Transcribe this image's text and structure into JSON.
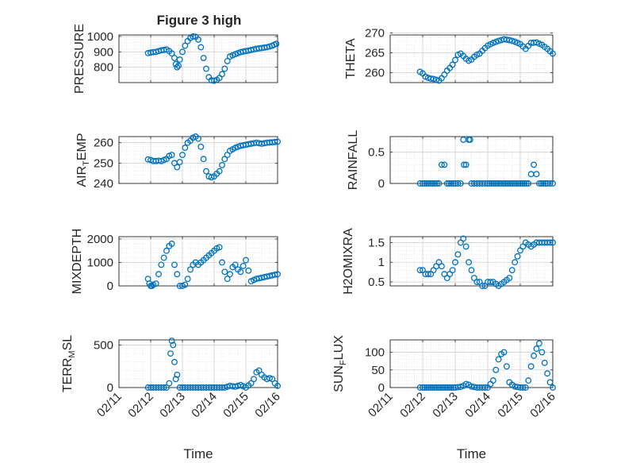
{
  "figure": {
    "title": "Figure 3 high",
    "marker_color": "#0072BD",
    "axis_color": "#262626",
    "grid_color": "#dcdcdc",
    "x_tick_labels": [
      "02/11",
      "02/12",
      "02/13",
      "02/14",
      "02/15",
      "02/16"
    ],
    "x_label": "Time"
  },
  "chart_data": [
    {
      "type": "scatter",
      "ylabel": "PRESSURE",
      "xlabel": "",
      "title": "Figure 3 high",
      "xlim": [
        "02/11",
        "02/16"
      ],
      "ylim": [
        700,
        1010
      ],
      "yticks": [
        800,
        900,
        1000
      ],
      "grid": true,
      "x": [
        "02/11 22:00",
        "02/12 00:00",
        "02/12 02:00",
        "02/12 04:00",
        "02/12 06:00",
        "02/12 08:00",
        "02/12 10:00",
        "02/12 12:00",
        "02/12 14:00",
        "02/12 16:00",
        "02/12 18:00",
        "02/12 19:00",
        "02/12 20:00",
        "02/12 21:00",
        "02/12 22:00",
        "02/13 00:00",
        "02/13 02:00",
        "02/13 04:00",
        "02/13 06:00",
        "02/13 08:00",
        "02/13 10:00",
        "02/13 12:00",
        "02/13 14:00",
        "02/13 16:00",
        "02/13 18:00",
        "02/13 20:00",
        "02/13 22:00",
        "02/14 00:00",
        "02/14 02:00",
        "02/14 04:00",
        "02/14 06:00",
        "02/14 08:00",
        "02/14 10:00",
        "02/14 12:00",
        "02/14 16:00",
        "02/14 20:00",
        "02/15 00:00",
        "02/15 04:00",
        "02/15 08:00",
        "02/15 12:00",
        "02/15 16:00",
        "02/15 20:00",
        "02/15 23:00"
      ],
      "values": [
        892,
        895,
        898,
        900,
        905,
        910,
        912,
        915,
        905,
        890,
        860,
        820,
        800,
        810,
        850,
        900,
        940,
        970,
        990,
        1000,
        998,
        980,
        930,
        860,
        790,
        735,
        715,
        712,
        718,
        730,
        755,
        790,
        840,
        870,
        885,
        898,
        905,
        912,
        920,
        925,
        930,
        940,
        952
      ]
    },
    {
      "type": "scatter",
      "ylabel": "THETA",
      "xlabel": "",
      "xlim": [
        "02/11",
        "02/16"
      ],
      "ylim": [
        257.5,
        269.5
      ],
      "yticks": [
        260,
        265,
        270
      ],
      "grid": true,
      "x": [
        "02/11 22:00",
        "02/12 00:00",
        "02/12 02:00",
        "02/12 04:00",
        "02/12 06:00",
        "02/12 08:00",
        "02/12 10:00",
        "02/12 12:00",
        "02/12 14:00",
        "02/12 16:00",
        "02/12 18:00",
        "02/12 20:00",
        "02/12 22:00",
        "02/13 00:00",
        "02/13 02:00",
        "02/13 04:00",
        "02/13 06:00",
        "02/13 08:00",
        "02/13 10:00",
        "02/13 12:00",
        "02/13 14:00",
        "02/13 16:00",
        "02/13 18:00",
        "02/13 20:00",
        "02/13 22:00",
        "02/14 00:00",
        "02/14 04:00",
        "02/14 08:00",
        "02/14 12:00",
        "02/14 16:00",
        "02/14 20:00",
        "02/15 00:00",
        "02/15 04:00",
        "02/15 08:00",
        "02/15 12:00",
        "02/15 16:00",
        "02/15 20:00",
        "02/16 00:00"
      ],
      "values": [
        260.2,
        259.8,
        259.0,
        258.7,
        258.5,
        258.4,
        258.2,
        258.0,
        258.6,
        259.5,
        260.5,
        261.2,
        262.0,
        263.2,
        264.5,
        264.8,
        264.2,
        263.5,
        263.0,
        263.3,
        264.0,
        264.5,
        264.8,
        265.5,
        266.2,
        266.8,
        267.5,
        268.0,
        268.4,
        268.2,
        267.8,
        267.2,
        266.0,
        267.5,
        267.6,
        267.0,
        266.0,
        264.8
      ]
    },
    {
      "type": "scatter",
      "ylabel": "AIR_TEMP",
      "xlabel": "",
      "xlim": [
        "02/11",
        "02/16"
      ],
      "ylim": [
        240,
        263
      ],
      "yticks": [
        240,
        250,
        260
      ],
      "grid": true,
      "x": [
        "02/11 22:00",
        "02/12 00:00",
        "02/12 02:00",
        "02/12 04:00",
        "02/12 06:00",
        "02/12 08:00",
        "02/12 10:00",
        "02/12 12:00",
        "02/12 14:00",
        "02/12 16:00",
        "02/12 18:00",
        "02/12 20:00",
        "02/12 22:00",
        "02/13 00:00",
        "02/13 02:00",
        "02/13 04:00",
        "02/13 06:00",
        "02/13 08:00",
        "02/13 10:00",
        "02/13 12:00",
        "02/13 14:00",
        "02/13 16:00",
        "02/13 18:00",
        "02/13 20:00",
        "02/13 22:00",
        "02/14 00:00",
        "02/14 04:00",
        "02/14 08:00",
        "02/14 12:00",
        "02/14 16:00",
        "02/14 20:00",
        "02/15 00:00",
        "02/15 04:00",
        "02/15 08:00",
        "02/15 12:00",
        "02/15 16:00",
        "02/15 20:00",
        "02/16 00:00"
      ],
      "values": [
        251.8,
        251.5,
        251.0,
        251.0,
        251.2,
        251.0,
        251.5,
        252.0,
        253.5,
        254.0,
        250.0,
        248.0,
        250.5,
        254.0,
        257.5,
        260.0,
        261.0,
        262.5,
        263.0,
        262.0,
        258.0,
        252.0,
        246.0,
        243.5,
        243.0,
        243.5,
        246.0,
        252.0,
        256.0,
        257.5,
        258.5,
        259.0,
        259.5,
        260.0,
        259.5,
        260.0,
        260.2,
        260.5
      ]
    },
    {
      "type": "scatter",
      "ylabel": "RAINFALL",
      "xlabel": "",
      "xlim": [
        "02/11",
        "02/16"
      ],
      "ylim": [
        0,
        0.75
      ],
      "yticks": [
        0,
        0.5
      ],
      "grid": true,
      "x": [
        "02/11 22:00",
        "02/12 00:00",
        "02/12 06:00",
        "02/12 12:00",
        "02/12 14:00",
        "02/12 16:00",
        "02/12 18:00",
        "02/13 00:00",
        "02/13 04:00",
        "02/13 06:00",
        "02/13 06:30",
        "02/13 08:00",
        "02/13 10:00",
        "02/13 11:00",
        "02/13 12:00",
        "02/13 14:00",
        "02/13 16:00",
        "02/13 20:00",
        "02/14 00:00",
        "02/14 06:00",
        "02/14 12:00",
        "02/14 18:00",
        "02/15 00:00",
        "02/15 06:00",
        "02/15 10:00",
        "02/15 14:00",
        "02/15 20:00",
        "02/16 00:00"
      ],
      "values": [
        0,
        0,
        0,
        0,
        0.3,
        0.3,
        0,
        0,
        0,
        0.7,
        0.3,
        0.3,
        0.7,
        0.7,
        0,
        0,
        0,
        0,
        0,
        0,
        0,
        0,
        0,
        0,
        0.3,
        0,
        0,
        0
      ]
    },
    {
      "type": "scatter",
      "ylabel": "MIXDEPTH",
      "xlabel": "",
      "xlim": [
        "02/11",
        "02/16"
      ],
      "ylim": [
        0,
        2100
      ],
      "yticks": [
        0,
        1000,
        2000
      ],
      "grid": true,
      "x": [
        "02/11 22:00",
        "02/11 23:00",
        "02/12 00:00",
        "02/12 01:00",
        "02/12 02:00",
        "02/12 04:00",
        "02/12 06:00",
        "02/12 08:00",
        "02/12 10:00",
        "02/12 12:00",
        "02/12 14:00",
        "02/12 16:00",
        "02/12 18:00",
        "02/12 20:00",
        "02/12 22:00",
        "02/13 00:00",
        "02/13 02:00",
        "02/13 04:00",
        "02/13 06:00",
        "02/13 08:00",
        "02/13 10:00",
        "02/13 12:00",
        "02/13 14:00",
        "02/13 16:00",
        "02/13 18:00",
        "02/13 20:00",
        "02/13 22:00",
        "02/14 00:00",
        "02/14 02:00",
        "02/14 04:00",
        "02/14 06:00",
        "02/14 08:00",
        "02/14 10:00",
        "02/14 12:00",
        "02/14 14:00",
        "02/14 16:00",
        "02/14 18:00",
        "02/14 20:00",
        "02/15 00:00",
        "02/15 04:00",
        "02/15 08:00",
        "02/15 12:00",
        "02/15 16:00",
        "02/15 20:00",
        "02/16 00:00"
      ],
      "values": [
        300,
        100,
        0,
        0,
        50,
        100,
        500,
        900,
        1200,
        1500,
        1700,
        1800,
        900,
        500,
        0,
        0,
        50,
        300,
        700,
        900,
        1000,
        900,
        1000,
        1100,
        1200,
        1300,
        1400,
        1500,
        1600,
        1650,
        1000,
        600,
        300,
        500,
        800,
        900,
        700,
        600,
        1100,
        200,
        300,
        350,
        400,
        450,
        500
      ]
    },
    {
      "type": "scatter",
      "ylabel": "H2OMIXRA",
      "xlabel": "",
      "xlim": [
        "02/11",
        "02/16"
      ],
      "ylim": [
        0.4,
        1.65
      ],
      "yticks": [
        0.5,
        1,
        1.5
      ],
      "grid": true,
      "x": [
        "02/11 22:00",
        "02/12 00:00",
        "02/12 02:00",
        "02/12 04:00",
        "02/12 06:00",
        "02/12 08:00",
        "02/12 10:00",
        "02/12 12:00",
        "02/12 14:00",
        "02/12 16:00",
        "02/12 18:00",
        "02/12 20:00",
        "02/12 22:00",
        "02/13 00:00",
        "02/13 02:00",
        "02/13 04:00",
        "02/13 06:00",
        "02/13 08:00",
        "02/13 10:00",
        "02/13 12:00",
        "02/13 14:00",
        "02/13 16:00",
        "02/13 18:00",
        "02/13 20:00",
        "02/13 22:00",
        "02/14 00:00",
        "02/14 04:00",
        "02/14 08:00",
        "02/14 12:00",
        "02/14 16:00",
        "02/14 20:00",
        "02/15 00:00",
        "02/15 04:00",
        "02/15 08:00",
        "02/15 12:00",
        "02/15 16:00",
        "02/15 20:00",
        "02/16 00:00"
      ],
      "values": [
        0.8,
        0.8,
        0.7,
        0.7,
        0.7,
        0.8,
        0.9,
        1.0,
        0.9,
        0.7,
        0.6,
        0.7,
        0.8,
        1.0,
        1.2,
        1.5,
        1.6,
        1.4,
        1.0,
        0.8,
        0.6,
        0.5,
        0.5,
        0.4,
        0.4,
        0.5,
        0.5,
        0.4,
        0.5,
        0.6,
        1.0,
        1.3,
        1.5,
        1.4,
        1.5,
        1.5,
        1.5,
        1.5
      ]
    },
    {
      "type": "scatter",
      "ylabel": "TERR_MSL",
      "xlabel": "Time",
      "xlim": [
        "02/11",
        "02/16"
      ],
      "ylim": [
        0,
        560
      ],
      "yticks": [
        0,
        500
      ],
      "grid": true,
      "x": [
        "02/11 22:00",
        "02/12 00:00",
        "02/12 04:00",
        "02/12 08:00",
        "02/12 12:00",
        "02/12 14:00",
        "02/12 15:00",
        "02/12 16:00",
        "02/12 17:00",
        "02/12 18:00",
        "02/12 19:00",
        "02/12 20:00",
        "02/12 22:00",
        "02/13 00:00",
        "02/13 04:00",
        "02/13 08:00",
        "02/13 12:00",
        "02/13 16:00",
        "02/13 20:00",
        "02/14 00:00",
        "02/14 04:00",
        "02/14 08:00",
        "02/14 12:00",
        "02/14 16:00",
        "02/14 20:00",
        "02/15 00:00",
        "02/15 04:00",
        "02/15 06:00",
        "02/15 08:00",
        "02/15 10:00",
        "02/15 12:00",
        "02/15 14:00",
        "02/15 16:00",
        "02/15 18:00",
        "02/15 20:00",
        "02/15 22:00",
        "02/16 00:00"
      ],
      "values": [
        0,
        0,
        0,
        0,
        0,
        50,
        400,
        550,
        500,
        300,
        100,
        150,
        0,
        0,
        0,
        0,
        0,
        0,
        0,
        0,
        0,
        0,
        20,
        10,
        30,
        0,
        50,
        100,
        180,
        200,
        150,
        120,
        100,
        110,
        100,
        50,
        20
      ]
    },
    {
      "type": "scatter",
      "ylabel": "SUN_FLUX",
      "xlabel": "Time",
      "xlim": [
        "02/11",
        "02/16"
      ],
      "ylim": [
        0,
        135
      ],
      "yticks": [
        0,
        50,
        100
      ],
      "grid": true,
      "x": [
        "02/11 22:00",
        "02/12 00:00",
        "02/12 06:00",
        "02/12 12:00",
        "02/12 18:00",
        "02/13 00:00",
        "02/13 04:00",
        "02/13 06:00",
        "02/13 08:00",
        "02/13 10:00",
        "02/13 12:00",
        "02/13 16:00",
        "02/13 20:00",
        "02/14 00:00",
        "02/14 04:00",
        "02/14 06:00",
        "02/14 08:00",
        "02/14 10:00",
        "02/14 12:00",
        "02/14 14:00",
        "02/14 16:00",
        "02/14 18:00",
        "02/14 20:00",
        "02/15 00:00",
        "02/15 02:00",
        "02/15 04:00",
        "02/15 06:00",
        "02/15 08:00",
        "02/15 10:00",
        "02/15 12:00",
        "02/15 14:00",
        "02/15 16:00",
        "02/15 18:00",
        "02/15 20:00",
        "02/15 22:00",
        "02/16 00:00"
      ],
      "values": [
        0,
        0,
        0,
        0,
        0,
        0,
        2,
        5,
        10,
        8,
        3,
        0,
        0,
        0,
        20,
        50,
        80,
        95,
        100,
        60,
        15,
        8,
        3,
        0,
        0,
        0,
        20,
        60,
        90,
        110,
        125,
        100,
        70,
        40,
        15,
        0
      ]
    }
  ]
}
